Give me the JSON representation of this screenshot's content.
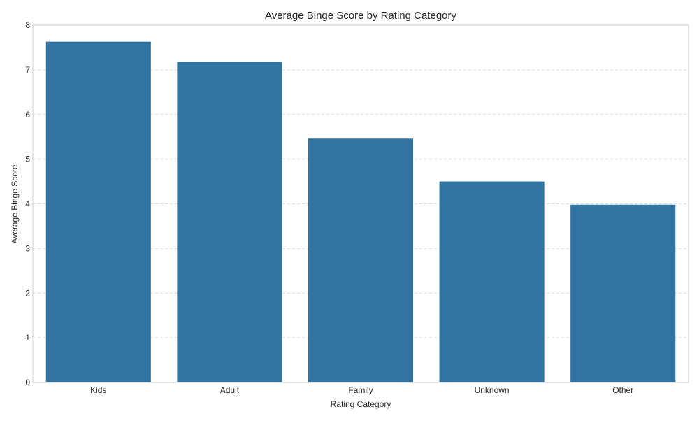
{
  "chart_data": {
    "type": "bar",
    "title": "Average Binge Score by Rating Category",
    "xlabel": "Rating Category",
    "ylabel": "Average Binge Score",
    "categories": [
      "Kids",
      "Adult",
      "Family",
      "Unknown",
      "Other"
    ],
    "values": [
      7.63,
      7.18,
      5.46,
      4.5,
      3.98
    ],
    "ylim": [
      0,
      8
    ],
    "yticks": [
      "0",
      "1",
      "2",
      "3",
      "4",
      "5",
      "6",
      "7",
      "8"
    ],
    "grid": true,
    "bar_color": "#3274a1",
    "grid_color": "#d9d9d9",
    "frame_color": "#cccccc"
  }
}
